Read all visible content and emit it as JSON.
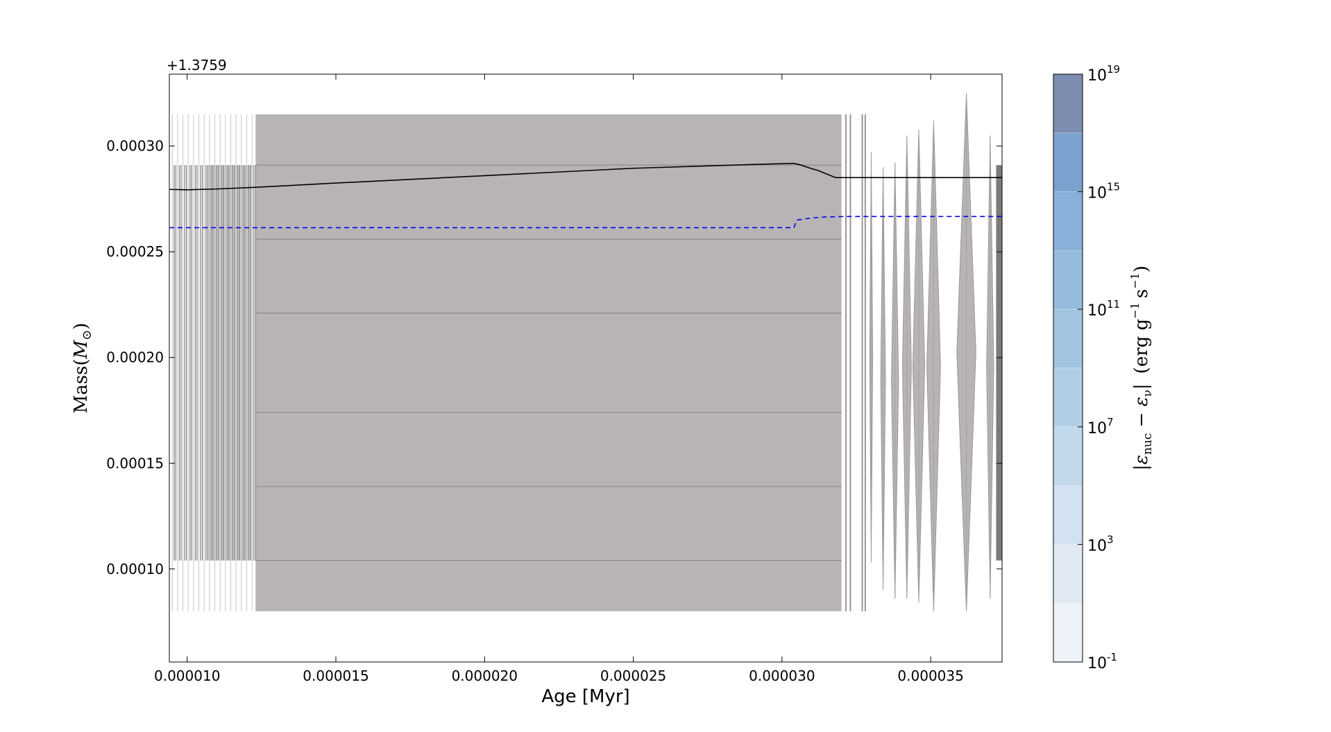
{
  "chart_data": {
    "type": "area",
    "title": "",
    "offset_label": "+1.3759",
    "xlabel": "Age [Myr]",
    "ylabel": "Mass(",
    "ylabel_symbol": "M",
    "ylabel_sub": "⊙",
    "ylabel_close": ")",
    "xlim": [
      9.4e-06,
      3.74e-05
    ],
    "ylim": [
      5.6e-05,
      0.000334
    ],
    "xticks": [
      1e-05,
      1.5e-05,
      2e-05,
      2.5e-05,
      3e-05,
      3.5e-05
    ],
    "xtick_labels": [
      "0.000010",
      "0.000015",
      "0.000020",
      "0.000025",
      "0.000030",
      "0.000035"
    ],
    "yticks": [
      0.0001,
      0.00015,
      0.0002,
      0.00025,
      0.0003
    ],
    "ytick_labels": [
      "0.00010",
      "0.00015",
      "0.00020",
      "0.00025",
      "0.00030"
    ],
    "grid": false,
    "colors": {
      "region_fill": "#b8b4b5",
      "region_line": "#8a8687",
      "solid_line": "#000000",
      "dashed_line": "#0000ee"
    },
    "main_region": {
      "x": [
        1.23e-05,
        3.2e-05
      ],
      "y": [
        8e-05,
        0.000315
      ]
    },
    "left_cluster": {
      "x": [
        9.5e-06,
        1.23e-05
      ],
      "y_inner": [
        0.000104,
        0.000291
      ],
      "y_outer": [
        8e-05,
        0.000315
      ]
    },
    "right_bars": [
      3.215e-05,
      3.23e-05,
      3.27e-05,
      3.28e-05
    ],
    "diamonds": [
      {
        "x": 3.3e-05,
        "hw": 5e-08,
        "ytop": 0.000297,
        "ybot": 0.000103
      },
      {
        "x": 3.34e-05,
        "hw": 8e-08,
        "ytop": 0.00029,
        "ybot": 9e-05
      },
      {
        "x": 3.38e-05,
        "hw": 1.2e-07,
        "ytop": 0.000292,
        "ybot": 8.6e-05
      },
      {
        "x": 3.42e-05,
        "hw": 1.5e-07,
        "ytop": 0.000305,
        "ybot": 8.6e-05
      },
      {
        "x": 3.46e-05,
        "hw": 2e-07,
        "ytop": 0.000308,
        "ybot": 8.4e-05
      },
      {
        "x": 3.51e-05,
        "hw": 2.3e-07,
        "ytop": 0.000312,
        "ybot": 8e-05
      },
      {
        "x": 3.62e-05,
        "hw": 3.2e-07,
        "ytop": 0.000325,
        "ybot": 8e-05
      },
      {
        "x": 3.7e-05,
        "hw": 1.2e-07,
        "ytop": 0.000305,
        "ybot": 8.6e-05
      }
    ],
    "edge_band": {
      "x": [
        3.72e-05,
        3.74e-05
      ],
      "y": [
        0.000104,
        0.000291
      ]
    },
    "series": [
      {
        "style": "solid",
        "x": [
          9.4e-06,
          1e-05,
          1.1e-05,
          1.23e-05,
          1.5e-05,
          2e-05,
          2.5e-05,
          2.95e-05,
          3.04e-05,
          3.06e-05,
          3.1e-05,
          3.12e-05,
          3.18e-05,
          3.3e-05,
          3.74e-05
        ],
        "y": [
          0.0002795,
          0.0002793,
          0.0002797,
          0.0002805,
          0.0002825,
          0.000286,
          0.0002895,
          0.0002915,
          0.0002918,
          0.0002912,
          0.0002893,
          0.0002885,
          0.0002851,
          0.0002851,
          0.0002851
        ]
      },
      {
        "style": "dashed",
        "x": [
          9.4e-06,
          2e-05,
          3.04e-05,
          3.05e-05,
          3.1e-05,
          3.15e-05,
          3.22e-05,
          3.74e-05
        ],
        "y": [
          0.0002614,
          0.0002614,
          0.0002614,
          0.000265,
          0.000266,
          0.0002665,
          0.0002667,
          0.0002667
        ]
      }
    ]
  },
  "colorbar": {
    "label_abs": "|",
    "label_eps1": "ε",
    "label_sub1": "nuc",
    "label_minus": " − ",
    "label_eps2": "ε",
    "label_sub2": "ν",
    "label_units_open": "(erg g",
    "label_exp1": "−1",
    "label_s": "s",
    "label_exp2": "−1",
    "label_units_close": ")",
    "colors": [
      "#eef3f9",
      "#e1eaf4",
      "#d3e2f0",
      "#c2d8eb",
      "#b0cfe6",
      "#a1c5e1",
      "#95bcdd",
      "#88b0d8",
      "#7ba2cf",
      "#7c8db0"
    ],
    "ticks": [
      {
        "base": "10",
        "exp": "-1",
        "frac": 0.0
      },
      {
        "base": "10",
        "exp": "3",
        "frac": 0.2
      },
      {
        "base": "10",
        "exp": "7",
        "frac": 0.4
      },
      {
        "base": "10",
        "exp": "11",
        "frac": 0.6
      },
      {
        "base": "10",
        "exp": "15",
        "frac": 0.8
      },
      {
        "base": "10",
        "exp": "19",
        "frac": 1.0
      }
    ]
  }
}
